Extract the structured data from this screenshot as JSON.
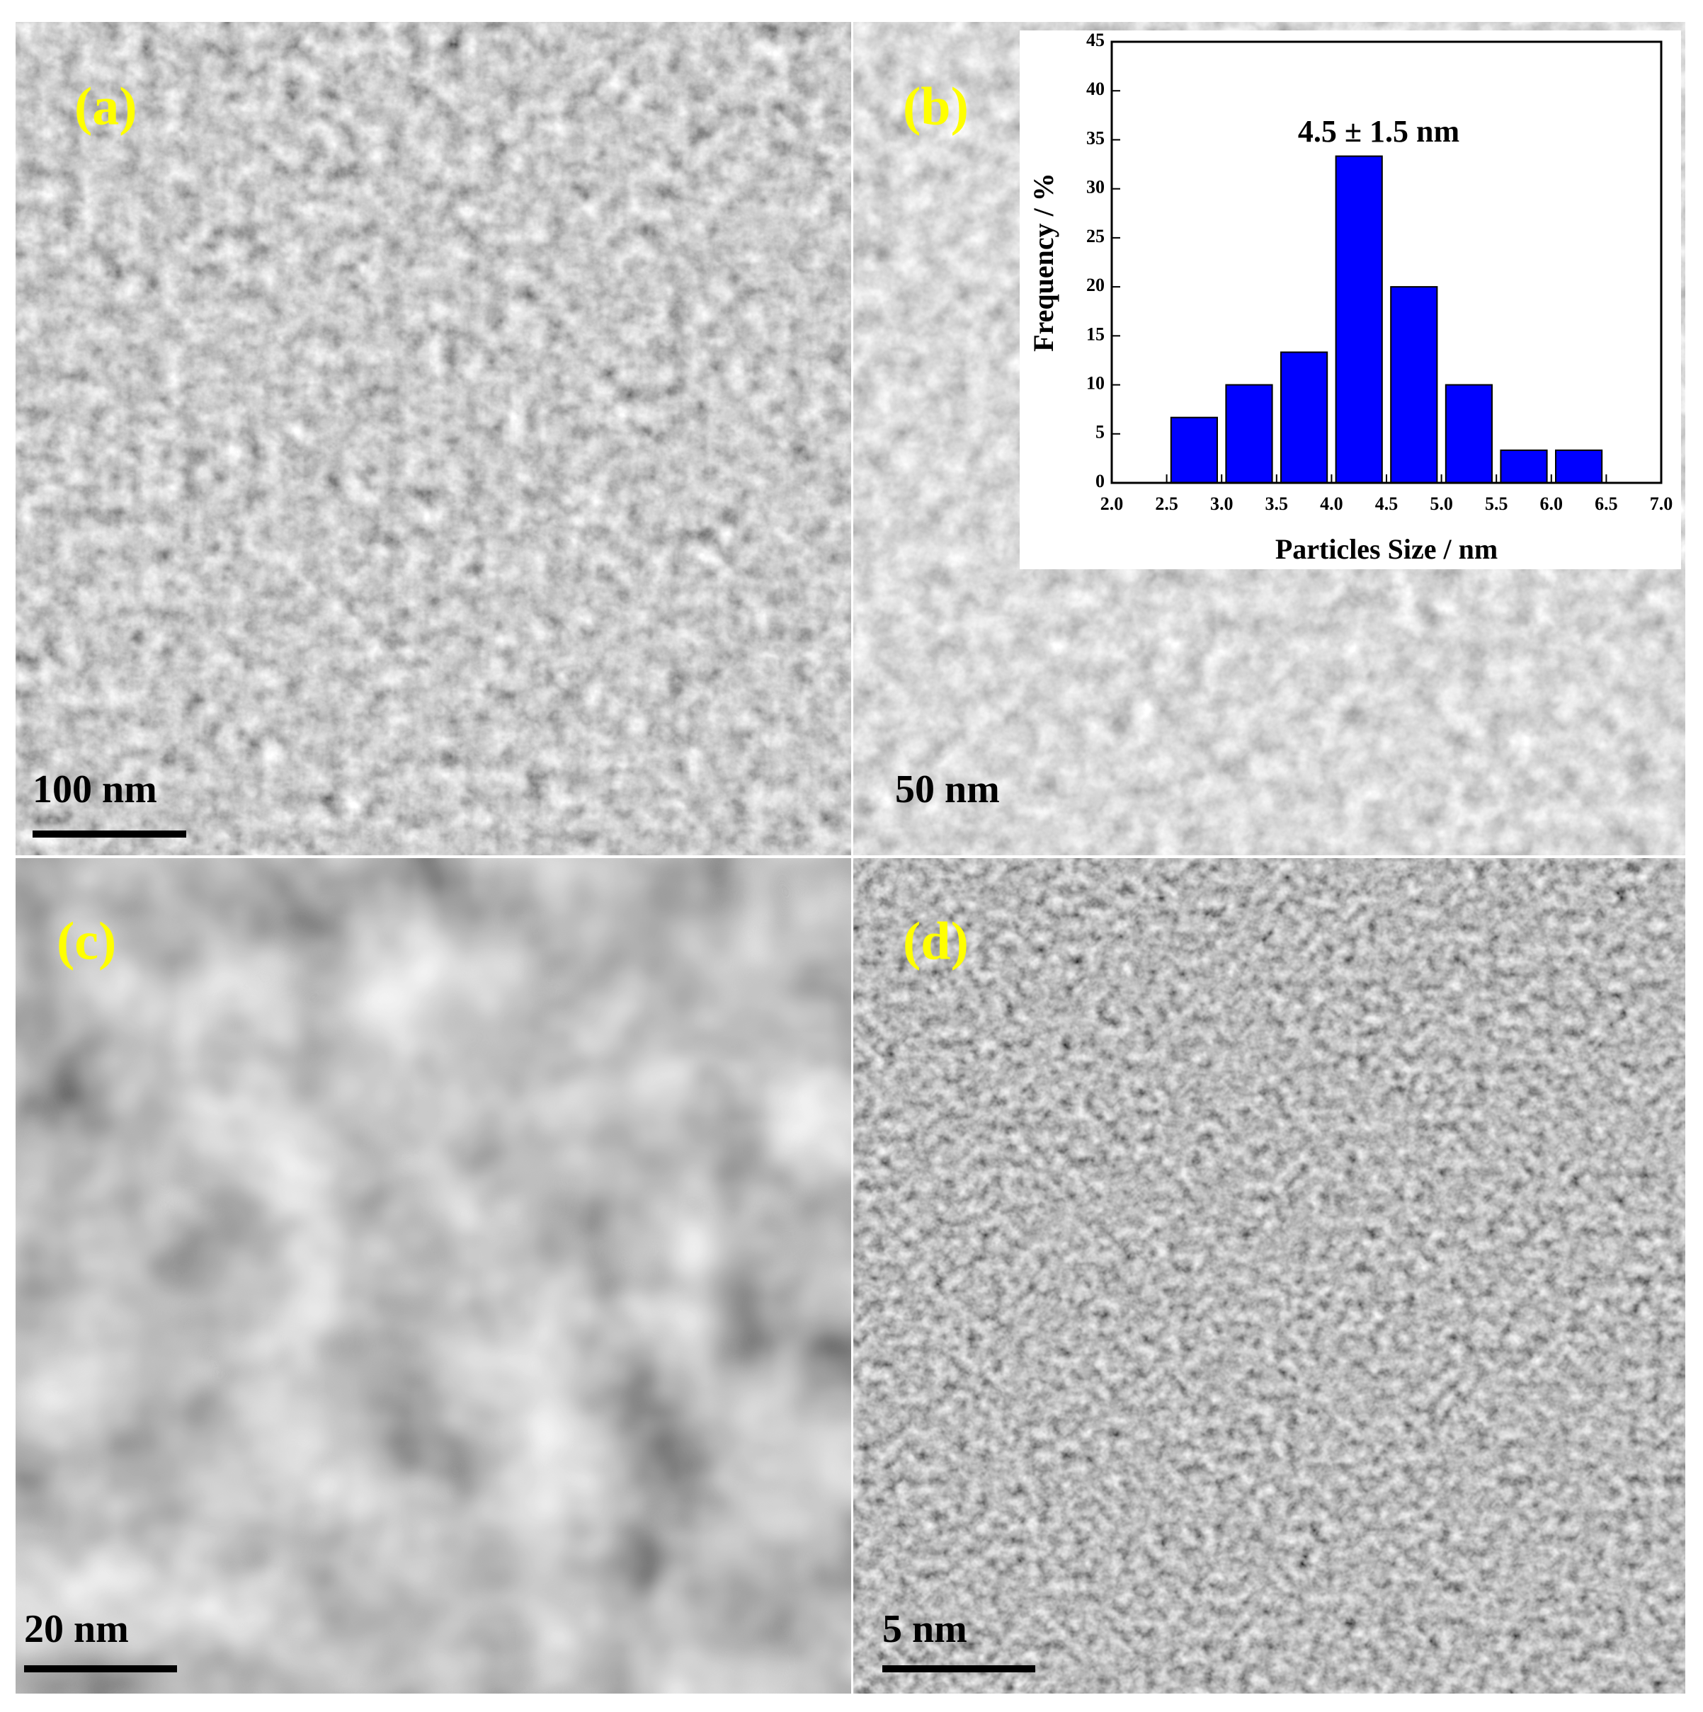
{
  "panels": [
    {
      "label": "(a)",
      "scale_bar": "100 nm"
    },
    {
      "label": "(b)",
      "scale_bar": "50 nm"
    },
    {
      "label": "(c)",
      "scale_bar": "20 nm"
    },
    {
      "label": "(d)",
      "scale_bar": "5 nm"
    }
  ],
  "chart_data": {
    "type": "histogram",
    "annotation": "4.5 ± 1.5 nm",
    "x_label": "Particles Size / nm",
    "y_label": "Frequency / %",
    "bins": [
      2.5,
      3.0,
      3.5,
      4.0,
      4.5,
      5.0,
      5.5,
      6.0,
      6.5
    ],
    "values": [
      6.67,
      10,
      13.33,
      33.33,
      20,
      10,
      3.33,
      3.33
    ],
    "color": "#0000ff",
    "xlim": [
      2.0,
      7.0
    ],
    "xticks": [
      {
        "value": 2,
        "label": "2.0"
      },
      {
        "value": 2.5,
        "label": "2.5"
      },
      {
        "value": 3,
        "label": "3.0"
      },
      {
        "value": 3.5,
        "label": "3.5"
      },
      {
        "value": 4,
        "label": "4.0"
      },
      {
        "value": 4.5,
        "label": "4.5"
      },
      {
        "value": 5,
        "label": "5.0"
      },
      {
        "value": 5.5,
        "label": "5.5"
      },
      {
        "value": 6,
        "label": "6.0"
      },
      {
        "value": 6.5,
        "label": "6.5"
      },
      {
        "value": 7,
        "label": "7.0"
      }
    ],
    "ylim": [
      0,
      45
    ],
    "yticks": [
      0,
      5,
      10,
      15,
      20,
      25,
      30,
      35,
      40,
      45
    ]
  }
}
